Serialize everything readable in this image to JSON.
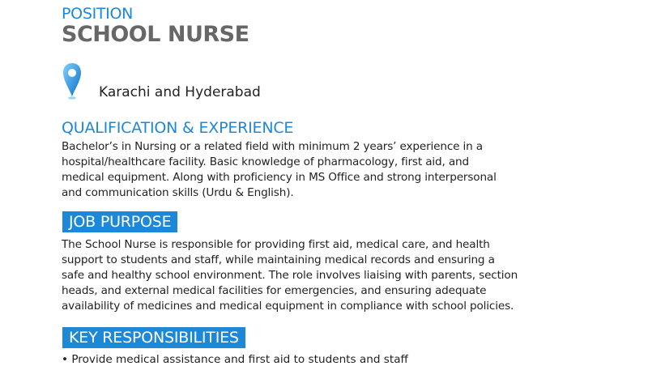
{
  "position_label": "POSITION",
  "position_title": "SCHOOL NURSE",
  "location": {
    "icon": "map-pin-icon",
    "text": "Karachi and Hyderabad"
  },
  "qualification": {
    "heading": "QUALIFICATION & EXPERIENCE",
    "lines": [
      "Bachelor’s in Nursing or a related field with minimum 2 years’ experience in a",
      "hospital/healthcare facility. Basic knowledge of pharmacology, first aid, and",
      "medical equipment. Along with proficiency in MS Office and strong interpersonal",
      "and communication skills (Urdu & English)."
    ]
  },
  "job_purpose": {
    "heading": "JOB PURPOSE",
    "lines": [
      "The School Nurse is responsible for providing first aid, medical care, and health",
      "support to students and staff, while maintaining medical records and ensuring a",
      "safe and healthy school environment. The role involves liaising with parents, section",
      "heads, and external medical facilities for emergencies, and ensuring adequate",
      "availability of medicines and medical equipment in compliance with school policies."
    ]
  },
  "key_responsibilities": {
    "heading": "KEY RESPONSIBILITIES",
    "first_item_partial": "•   Provide medical assistance and first aid to students and staff"
  },
  "colors": {
    "accent": "#1e88d8",
    "title_gray": "#676767"
  }
}
